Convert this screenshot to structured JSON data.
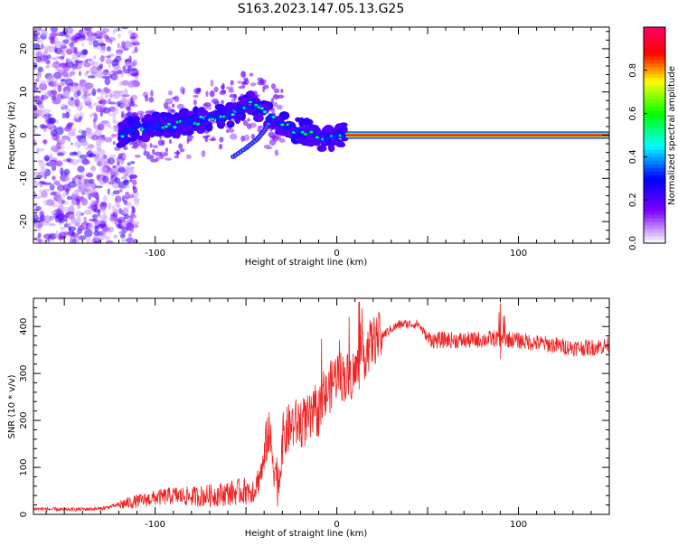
{
  "page_title": "S163.2023.147.05.13.G25",
  "chart_data": [
    {
      "type": "heatmap",
      "title": "S163.2023.147.05.13.G25",
      "xlabel": "Height of straight line (km)",
      "ylabel": "Frequency (Hz)",
      "xlim": [
        -167,
        150
      ],
      "ylim": [
        -25,
        25
      ],
      "x_ticks": [
        -100,
        0,
        100
      ],
      "y_ticks": [
        -20,
        -10,
        0,
        10,
        20
      ],
      "colorbar": {
        "label": "Normalized spectral amplitude",
        "range": [
          0,
          1
        ],
        "ticks": [
          0.0,
          0.2,
          0.4,
          0.6,
          0.8
        ],
        "tick_labels": [
          "0.0",
          "0.2",
          "0.4",
          "0.6",
          "0.8"
        ],
        "colors": [
          "#ffffff",
          "#7b00ff",
          "#0000ff",
          "#00ffff",
          "#00ff00",
          "#ffff00",
          "#ff0000",
          "#ff0066"
        ]
      },
      "ridge": {
        "x": [
          -120,
          -110,
          -100,
          -90,
          -80,
          -70,
          -60,
          -50,
          -45,
          -40,
          -35,
          -30,
          -25,
          -20,
          -15,
          -10,
          -5,
          0,
          5,
          20,
          50,
          80,
          100,
          120,
          150
        ],
        "y": [
          0,
          1.5,
          2,
          2.5,
          3,
          4,
          4.5,
          7,
          7,
          5,
          4,
          2.5,
          1.5,
          1,
          0.5,
          -0.5,
          -1,
          0,
          0,
          0,
          0,
          0,
          0,
          0,
          0
        ]
      },
      "side_branch": {
        "x": [
          -57,
          -50,
          -44,
          -40,
          -37
        ],
        "y": [
          -5,
          -3,
          -1,
          1,
          3
        ]
      }
    },
    {
      "type": "line",
      "xlabel": "Height of straight line (km)",
      "ylabel": "SNR (10 * v/v)",
      "xlim": [
        -167,
        150
      ],
      "ylim": [
        0,
        460
      ],
      "x_ticks": [
        -100,
        0,
        100
      ],
      "y_ticks": [
        0,
        100,
        200,
        300,
        400
      ],
      "color": "#ee2222",
      "series": [
        {
          "x": [
            -167,
            -150,
            -130,
            -120,
            -110,
            -100,
            -90,
            -80,
            -70,
            -60,
            -50,
            -45,
            -40,
            -38,
            -35,
            -32,
            -30,
            -25,
            -20,
            -15,
            -10,
            -5,
            0,
            5,
            10,
            15,
            20,
            25,
            30,
            35,
            40,
            45,
            50,
            55,
            60,
            70,
            80,
            90,
            100,
            110,
            120,
            130,
            140,
            150
          ],
          "y": [
            12,
            10,
            12,
            20,
            28,
            35,
            40,
            38,
            40,
            45,
            50,
            55,
            110,
            180,
            120,
            60,
            160,
            190,
            195,
            200,
            220,
            260,
            300,
            290,
            300,
            340,
            370,
            380,
            395,
            405,
            405,
            405,
            375,
            370,
            372,
            370,
            372,
            375,
            370,
            365,
            360,
            355,
            355,
            360
          ]
        }
      ]
    }
  ]
}
